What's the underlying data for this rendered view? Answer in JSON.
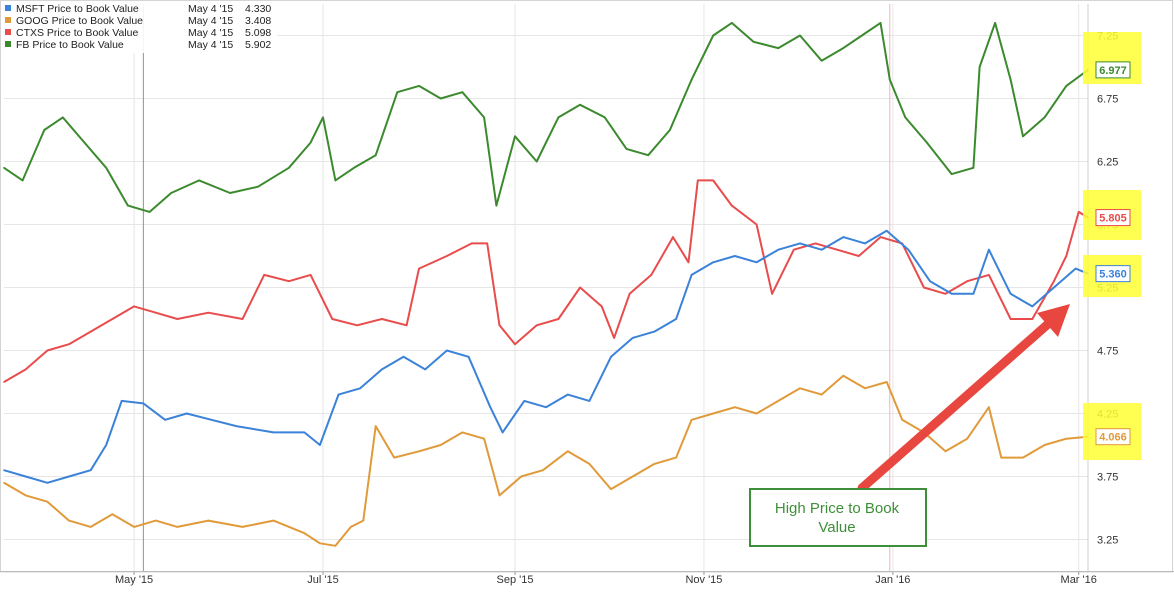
{
  "chart_data": {
    "type": "line",
    "title": "",
    "xlabel": "",
    "ylabel": "",
    "x_tick_labels": [
      "May '15",
      "Jul '15",
      "Sep '15",
      "Nov '15",
      "Jan '16",
      "Mar '16"
    ],
    "y_ticks": [
      3.25,
      3.75,
      4.25,
      4.75,
      5.25,
      5.75,
      6.25,
      6.75,
      7.25
    ],
    "ylim": [
      3.0,
      7.5
    ],
    "x_range": [
      "2015-03-20",
      "2016-03-04"
    ],
    "grid": true,
    "legend_position": "top-left",
    "crosshair_date": "May 4 '15",
    "annotation": "High Price to Book Value",
    "legend": [
      {
        "name": "MSFT Price to Book Value",
        "date": "May 4 '15",
        "value": "4.330",
        "color": "#3b82d9"
      },
      {
        "name": "GOOG Price to Book Value",
        "date": "May 4 '15",
        "value": "3.408",
        "color": "#e09a3a"
      },
      {
        "name": "CTXS Price to Book Value",
        "date": "May 4 '15",
        "value": "5.098",
        "color": "#e84c4c"
      },
      {
        "name": "FB Price to Book Value",
        "date": "May 4 '15",
        "value": "5.902",
        "color": "#3b8a2e"
      }
    ],
    "series": [
      {
        "name": "FB Price to Book Value",
        "color": "#3b8a2e",
        "end_label": "6.977",
        "points": [
          [
            "2015-03-20",
            6.2
          ],
          [
            "2015-03-26",
            6.1
          ],
          [
            "2015-04-02",
            6.5
          ],
          [
            "2015-04-08",
            6.6
          ],
          [
            "2015-04-15",
            6.4
          ],
          [
            "2015-04-22",
            6.2
          ],
          [
            "2015-04-29",
            5.9
          ],
          [
            "2015-05-06",
            5.85
          ],
          [
            "2015-05-13",
            6.0
          ],
          [
            "2015-05-22",
            6.1
          ],
          [
            "2015-06-01",
            6.0
          ],
          [
            "2015-06-10",
            6.05
          ],
          [
            "2015-06-20",
            6.2
          ],
          [
            "2015-06-27",
            6.4
          ],
          [
            "2015-07-01",
            6.6
          ],
          [
            "2015-07-05",
            6.1
          ],
          [
            "2015-07-11",
            6.2
          ],
          [
            "2015-07-18",
            6.3
          ],
          [
            "2015-07-25",
            6.8
          ],
          [
            "2015-08-01",
            6.85
          ],
          [
            "2015-08-08",
            6.75
          ],
          [
            "2015-08-15",
            6.8
          ],
          [
            "2015-08-22",
            6.6
          ],
          [
            "2015-08-26",
            5.9
          ],
          [
            "2015-09-01",
            6.45
          ],
          [
            "2015-09-08",
            6.25
          ],
          [
            "2015-09-15",
            6.6
          ],
          [
            "2015-09-22",
            6.7
          ],
          [
            "2015-09-30",
            6.6
          ],
          [
            "2015-10-07",
            6.35
          ],
          [
            "2015-10-14",
            6.3
          ],
          [
            "2015-10-21",
            6.5
          ],
          [
            "2015-10-28",
            6.9
          ],
          [
            "2015-11-04",
            7.25
          ],
          [
            "2015-11-10",
            7.35
          ],
          [
            "2015-11-17",
            7.2
          ],
          [
            "2015-11-25",
            7.15
          ],
          [
            "2015-12-02",
            7.25
          ],
          [
            "2015-12-09",
            7.05
          ],
          [
            "2015-12-16",
            7.15
          ],
          [
            "2015-12-22",
            7.25
          ],
          [
            "2015-12-28",
            7.35
          ],
          [
            "2015-12-31",
            6.9
          ],
          [
            "2016-01-05",
            6.6
          ],
          [
            "2016-01-12",
            6.4
          ],
          [
            "2016-01-20",
            6.15
          ],
          [
            "2016-01-27",
            6.2
          ],
          [
            "2016-01-29",
            7.0
          ],
          [
            "2016-02-03",
            7.35
          ],
          [
            "2016-02-08",
            6.9
          ],
          [
            "2016-02-12",
            6.45
          ],
          [
            "2016-02-19",
            6.6
          ],
          [
            "2016-02-26",
            6.85
          ],
          [
            "2016-03-04",
            6.977
          ]
        ]
      },
      {
        "name": "CTXS Price to Book Value",
        "color": "#e84c4c",
        "end_label": "5.805",
        "points": [
          [
            "2015-03-20",
            4.5
          ],
          [
            "2015-03-27",
            4.6
          ],
          [
            "2015-04-03",
            4.75
          ],
          [
            "2015-04-10",
            4.8
          ],
          [
            "2015-04-17",
            4.9
          ],
          [
            "2015-04-24",
            5.0
          ],
          [
            "2015-05-01",
            5.1
          ],
          [
            "2015-05-08",
            5.05
          ],
          [
            "2015-05-15",
            5.0
          ],
          [
            "2015-05-25",
            5.05
          ],
          [
            "2015-06-05",
            5.0
          ],
          [
            "2015-06-12",
            5.35
          ],
          [
            "2015-06-20",
            5.3
          ],
          [
            "2015-06-27",
            5.35
          ],
          [
            "2015-07-04",
            5.0
          ],
          [
            "2015-07-12",
            4.95
          ],
          [
            "2015-07-20",
            5.0
          ],
          [
            "2015-07-28",
            4.95
          ],
          [
            "2015-08-01",
            5.4
          ],
          [
            "2015-08-10",
            5.5
          ],
          [
            "2015-08-18",
            5.6
          ],
          [
            "2015-08-23",
            5.6
          ],
          [
            "2015-08-27",
            4.95
          ],
          [
            "2015-09-01",
            4.8
          ],
          [
            "2015-09-08",
            4.95
          ],
          [
            "2015-09-15",
            5.0
          ],
          [
            "2015-09-22",
            5.25
          ],
          [
            "2015-09-29",
            5.1
          ],
          [
            "2015-10-03",
            4.85
          ],
          [
            "2015-10-08",
            5.2
          ],
          [
            "2015-10-15",
            5.35
          ],
          [
            "2015-10-22",
            5.65
          ],
          [
            "2015-10-27",
            5.45
          ],
          [
            "2015-10-30",
            6.1
          ],
          [
            "2015-11-04",
            6.1
          ],
          [
            "2015-11-10",
            5.9
          ],
          [
            "2015-11-18",
            5.75
          ],
          [
            "2015-11-23",
            5.2
          ],
          [
            "2015-11-30",
            5.55
          ],
          [
            "2015-12-07",
            5.6
          ],
          [
            "2015-12-14",
            5.55
          ],
          [
            "2015-12-21",
            5.5
          ],
          [
            "2015-12-28",
            5.65
          ],
          [
            "2016-01-04",
            5.6
          ],
          [
            "2016-01-11",
            5.25
          ],
          [
            "2016-01-18",
            5.2
          ],
          [
            "2016-01-25",
            5.3
          ],
          [
            "2016-02-01",
            5.35
          ],
          [
            "2016-02-08",
            5.0
          ],
          [
            "2016-02-15",
            5.0
          ],
          [
            "2016-02-22",
            5.3
          ],
          [
            "2016-02-26",
            5.5
          ],
          [
            "2016-03-01",
            5.85
          ],
          [
            "2016-03-04",
            5.805
          ]
        ]
      },
      {
        "name": "MSFT Price to Book Value",
        "color": "#3b82d9",
        "end_label": "5.360",
        "points": [
          [
            "2015-03-20",
            3.8
          ],
          [
            "2015-03-27",
            3.75
          ],
          [
            "2015-04-03",
            3.7
          ],
          [
            "2015-04-10",
            3.75
          ],
          [
            "2015-04-17",
            3.8
          ],
          [
            "2015-04-22",
            4.0
          ],
          [
            "2015-04-27",
            4.35
          ],
          [
            "2015-05-04",
            4.33
          ],
          [
            "2015-05-11",
            4.2
          ],
          [
            "2015-05-18",
            4.25
          ],
          [
            "2015-05-26",
            4.2
          ],
          [
            "2015-06-03",
            4.15
          ],
          [
            "2015-06-15",
            4.1
          ],
          [
            "2015-06-25",
            4.1
          ],
          [
            "2015-06-30",
            4.0
          ],
          [
            "2015-07-06",
            4.4
          ],
          [
            "2015-07-13",
            4.45
          ],
          [
            "2015-07-20",
            4.6
          ],
          [
            "2015-07-27",
            4.7
          ],
          [
            "2015-08-03",
            4.6
          ],
          [
            "2015-08-10",
            4.75
          ],
          [
            "2015-08-17",
            4.7
          ],
          [
            "2015-08-24",
            4.3
          ],
          [
            "2015-08-28",
            4.1
          ],
          [
            "2015-09-04",
            4.35
          ],
          [
            "2015-09-11",
            4.3
          ],
          [
            "2015-09-18",
            4.4
          ],
          [
            "2015-09-25",
            4.35
          ],
          [
            "2015-10-02",
            4.7
          ],
          [
            "2015-10-09",
            4.85
          ],
          [
            "2015-10-16",
            4.9
          ],
          [
            "2015-10-23",
            5.0
          ],
          [
            "2015-10-28",
            5.35
          ],
          [
            "2015-11-04",
            5.45
          ],
          [
            "2015-11-11",
            5.5
          ],
          [
            "2015-11-18",
            5.45
          ],
          [
            "2015-11-25",
            5.55
          ],
          [
            "2015-12-02",
            5.6
          ],
          [
            "2015-12-09",
            5.55
          ],
          [
            "2015-12-16",
            5.65
          ],
          [
            "2015-12-23",
            5.6
          ],
          [
            "2015-12-30",
            5.7
          ],
          [
            "2016-01-06",
            5.55
          ],
          [
            "2016-01-13",
            5.3
          ],
          [
            "2016-01-20",
            5.2
          ],
          [
            "2016-01-27",
            5.2
          ],
          [
            "2016-02-01",
            5.55
          ],
          [
            "2016-02-08",
            5.2
          ],
          [
            "2016-02-15",
            5.1
          ],
          [
            "2016-02-22",
            5.25
          ],
          [
            "2016-02-29",
            5.4
          ],
          [
            "2016-03-04",
            5.36
          ]
        ]
      },
      {
        "name": "GOOG Price to Book Value",
        "color": "#e09a3a",
        "end_label": "4.066",
        "points": [
          [
            "2015-03-20",
            3.7
          ],
          [
            "2015-03-27",
            3.6
          ],
          [
            "2015-04-03",
            3.55
          ],
          [
            "2015-04-10",
            3.4
          ],
          [
            "2015-04-17",
            3.35
          ],
          [
            "2015-04-24",
            3.45
          ],
          [
            "2015-05-01",
            3.35
          ],
          [
            "2015-05-08",
            3.4
          ],
          [
            "2015-05-15",
            3.35
          ],
          [
            "2015-05-25",
            3.4
          ],
          [
            "2015-06-05",
            3.35
          ],
          [
            "2015-06-15",
            3.4
          ],
          [
            "2015-06-25",
            3.3
          ],
          [
            "2015-06-30",
            3.22
          ],
          [
            "2015-07-05",
            3.2
          ],
          [
            "2015-07-10",
            3.35
          ],
          [
            "2015-07-14",
            3.4
          ],
          [
            "2015-07-18",
            4.15
          ],
          [
            "2015-07-24",
            3.9
          ],
          [
            "2015-08-01",
            3.95
          ],
          [
            "2015-08-08",
            4.0
          ],
          [
            "2015-08-15",
            4.1
          ],
          [
            "2015-08-22",
            4.05
          ],
          [
            "2015-08-27",
            3.6
          ],
          [
            "2015-09-03",
            3.75
          ],
          [
            "2015-09-10",
            3.8
          ],
          [
            "2015-09-18",
            3.95
          ],
          [
            "2015-09-25",
            3.85
          ],
          [
            "2015-10-02",
            3.65
          ],
          [
            "2015-10-09",
            3.75
          ],
          [
            "2015-10-16",
            3.85
          ],
          [
            "2015-10-23",
            3.9
          ],
          [
            "2015-10-28",
            4.2
          ],
          [
            "2015-11-04",
            4.25
          ],
          [
            "2015-11-11",
            4.3
          ],
          [
            "2015-11-18",
            4.25
          ],
          [
            "2015-11-25",
            4.35
          ],
          [
            "2015-12-02",
            4.45
          ],
          [
            "2015-12-09",
            4.4
          ],
          [
            "2015-12-16",
            4.55
          ],
          [
            "2015-12-23",
            4.45
          ],
          [
            "2015-12-30",
            4.5
          ],
          [
            "2016-01-04",
            4.2
          ],
          [
            "2016-01-11",
            4.1
          ],
          [
            "2016-01-18",
            3.95
          ],
          [
            "2016-01-25",
            4.05
          ],
          [
            "2016-02-01",
            4.3
          ],
          [
            "2016-02-05",
            3.9
          ],
          [
            "2016-02-12",
            3.9
          ],
          [
            "2016-02-19",
            4.0
          ],
          [
            "2016-02-26",
            4.05
          ],
          [
            "2016-03-04",
            4.066
          ]
        ]
      }
    ]
  }
}
